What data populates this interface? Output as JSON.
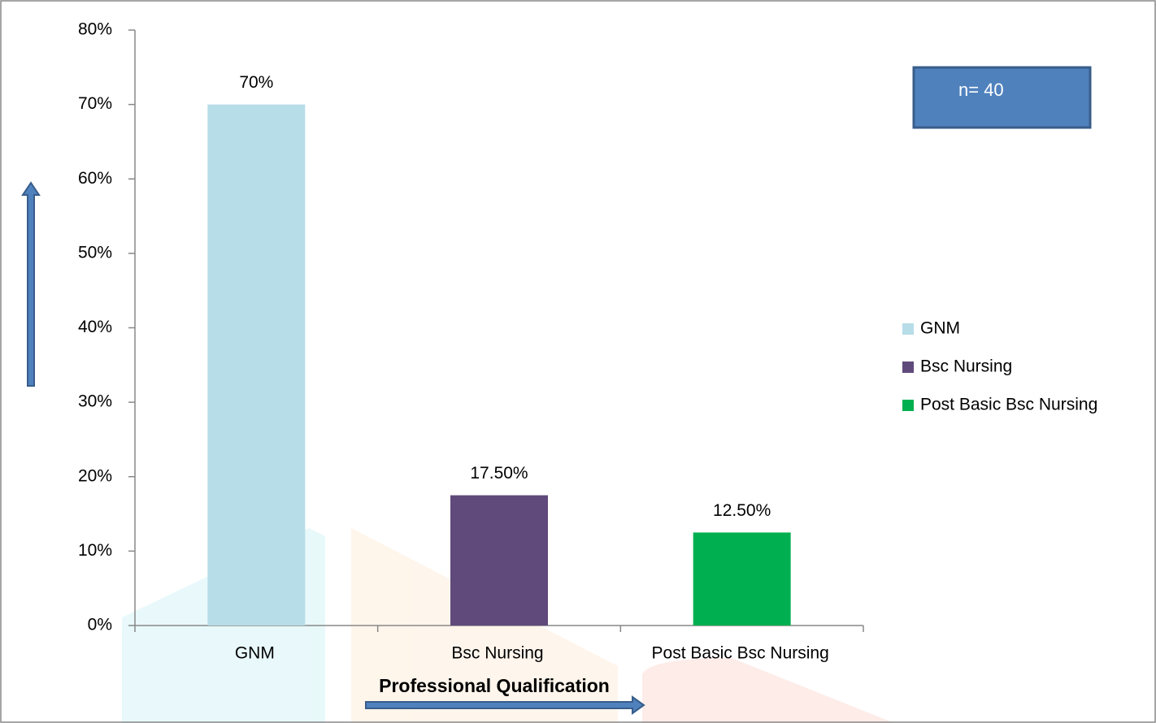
{
  "chart_data": {
    "type": "bar",
    "categories": [
      "GNM",
      "Bsc Nursing",
      "Post Basic Bsc Nursing"
    ],
    "values": [
      70,
      17.5,
      12.5
    ],
    "value_labels": [
      "70%",
      "17.50%",
      "12.50%"
    ],
    "colors": [
      "#b7dde8",
      "#604a7b",
      "#00b050"
    ],
    "ylim": [
      0,
      80
    ],
    "yticks": [
      {
        "value": 0,
        "label": "0%"
      },
      {
        "value": 10,
        "label": "10%"
      },
      {
        "value": 20,
        "label": "20%"
      },
      {
        "value": 30,
        "label": "30%"
      },
      {
        "value": 40,
        "label": "40%"
      },
      {
        "value": 50,
        "label": "50%"
      },
      {
        "value": 60,
        "label": "60%"
      },
      {
        "value": 70,
        "label": "70%"
      },
      {
        "value": 80,
        "label": "80%"
      }
    ],
    "x_label": "Professional Qualification",
    "annotation": "n= 40",
    "grid": false
  }
}
